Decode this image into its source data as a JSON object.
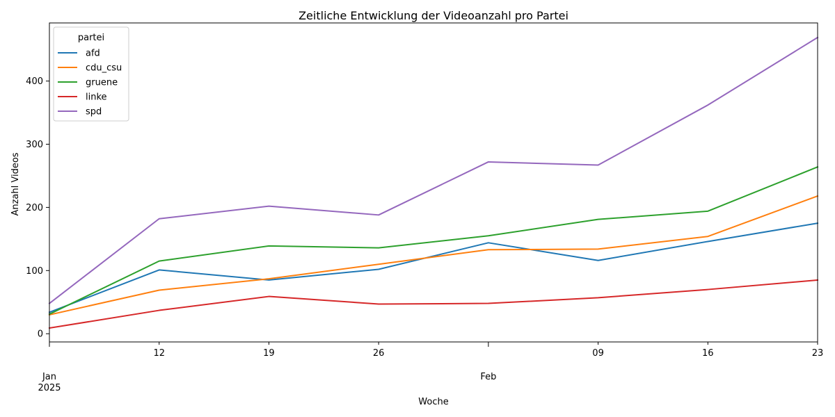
{
  "chart_data": {
    "type": "line",
    "title": "Zeitliche Entwicklung der Videoanzahl pro Partei",
    "xlabel": "Woche",
    "ylabel": "Anzahl Videos",
    "x": [
      "2025-01-05",
      "2025-01-12",
      "2025-01-19",
      "2025-01-26",
      "2025-02-02",
      "2025-02-09",
      "2025-02-16",
      "2025-02-23"
    ],
    "xlim": [
      "2025-01-05",
      "2025-02-23"
    ],
    "ylim": [
      -13,
      492
    ],
    "yticks": [
      0,
      100,
      200,
      300,
      400
    ],
    "xticks": [
      {
        "date": "2025-01-05",
        "label": "",
        "major": true
      },
      {
        "date": "2025-01-12",
        "label": "12",
        "major": false
      },
      {
        "date": "2025-01-19",
        "label": "19",
        "major": false
      },
      {
        "date": "2025-01-26",
        "label": "26",
        "major": false
      },
      {
        "date": "2025-02-02",
        "label": "",
        "major": true
      },
      {
        "date": "2025-02-09",
        "label": "09",
        "major": false
      },
      {
        "date": "2025-02-16",
        "label": "16",
        "major": false
      },
      {
        "date": "2025-02-23",
        "label": "23",
        "major": false
      }
    ],
    "month_labels": [
      {
        "date": "2025-01-05",
        "lines": [
          "Jan",
          "2025"
        ]
      },
      {
        "date": "2025-02-02",
        "lines": [
          "Feb"
        ]
      }
    ],
    "grid": false,
    "legend": {
      "title": "partei",
      "position": "top-left"
    },
    "series": [
      {
        "name": "afd",
        "color": "#1f77b4",
        "values": [
          34,
          101,
          85,
          102,
          144,
          116,
          146,
          175
        ]
      },
      {
        "name": "cdu_csu",
        "color": "#ff7f0e",
        "values": [
          30,
          69,
          87,
          110,
          133,
          134,
          154,
          218
        ]
      },
      {
        "name": "gruene",
        "color": "#2ca02c",
        "values": [
          31,
          115,
          139,
          136,
          155,
          181,
          194,
          264
        ]
      },
      {
        "name": "linke",
        "color": "#d62728",
        "values": [
          9,
          37,
          59,
          47,
          48,
          57,
          70,
          85
        ]
      },
      {
        "name": "spd",
        "color": "#9467bd",
        "values": [
          48,
          182,
          202,
          188,
          272,
          267,
          362,
          469
        ]
      }
    ]
  }
}
